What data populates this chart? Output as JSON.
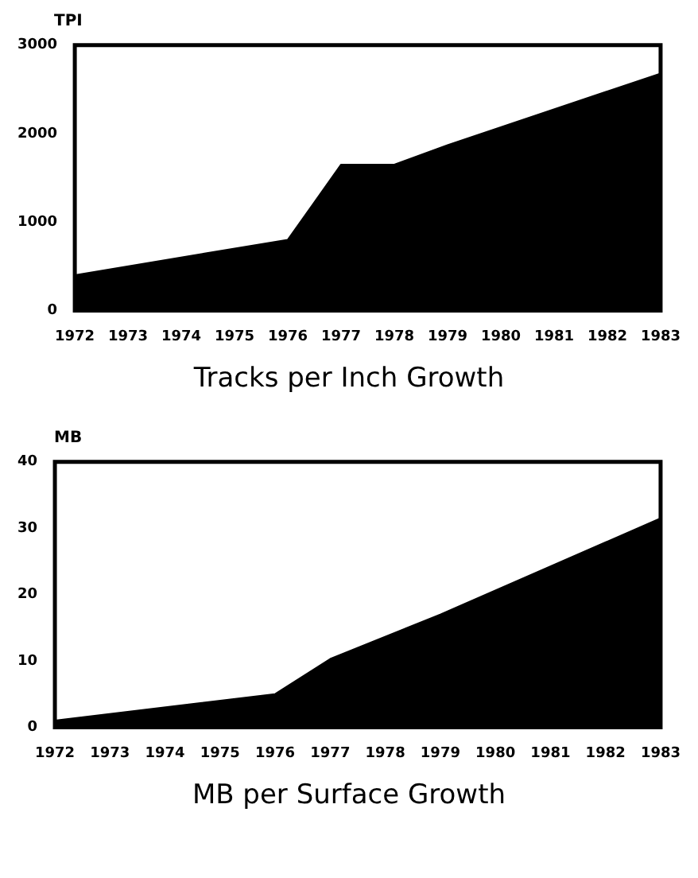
{
  "chart_data": [
    {
      "type": "area",
      "title": "Tracks per Inch Growth",
      "ylabel": "TPI",
      "x": [
        1972,
        1976,
        1977,
        1978,
        1979,
        1983
      ],
      "values": [
        400,
        800,
        1650,
        1650,
        1870,
        2680
      ],
      "color": "#000000",
      "xlim": [
        1972,
        1983
      ],
      "xticks": [
        1972,
        1973,
        1974,
        1975,
        1976,
        1977,
        1978,
        1979,
        1980,
        1981,
        1982,
        1983
      ],
      "ylim": [
        0,
        3000
      ],
      "yticks": [
        0,
        1000,
        2000,
        3000
      ],
      "grid": false,
      "legend": false
    },
    {
      "type": "area",
      "title": "MB per Surface Growth",
      "ylabel": "MB",
      "x": [
        1972,
        1976,
        1977,
        1979,
        1983
      ],
      "values": [
        1,
        5,
        10.3,
        17,
        31.5
      ],
      "color": "#000000",
      "xlim": [
        1972,
        1983
      ],
      "xticks": [
        1972,
        1973,
        1974,
        1975,
        1976,
        1977,
        1978,
        1979,
        1980,
        1981,
        1982,
        1983
      ],
      "ylim": [
        0,
        40
      ],
      "yticks": [
        0,
        10,
        20,
        30,
        40
      ],
      "grid": false,
      "legend": false
    }
  ]
}
